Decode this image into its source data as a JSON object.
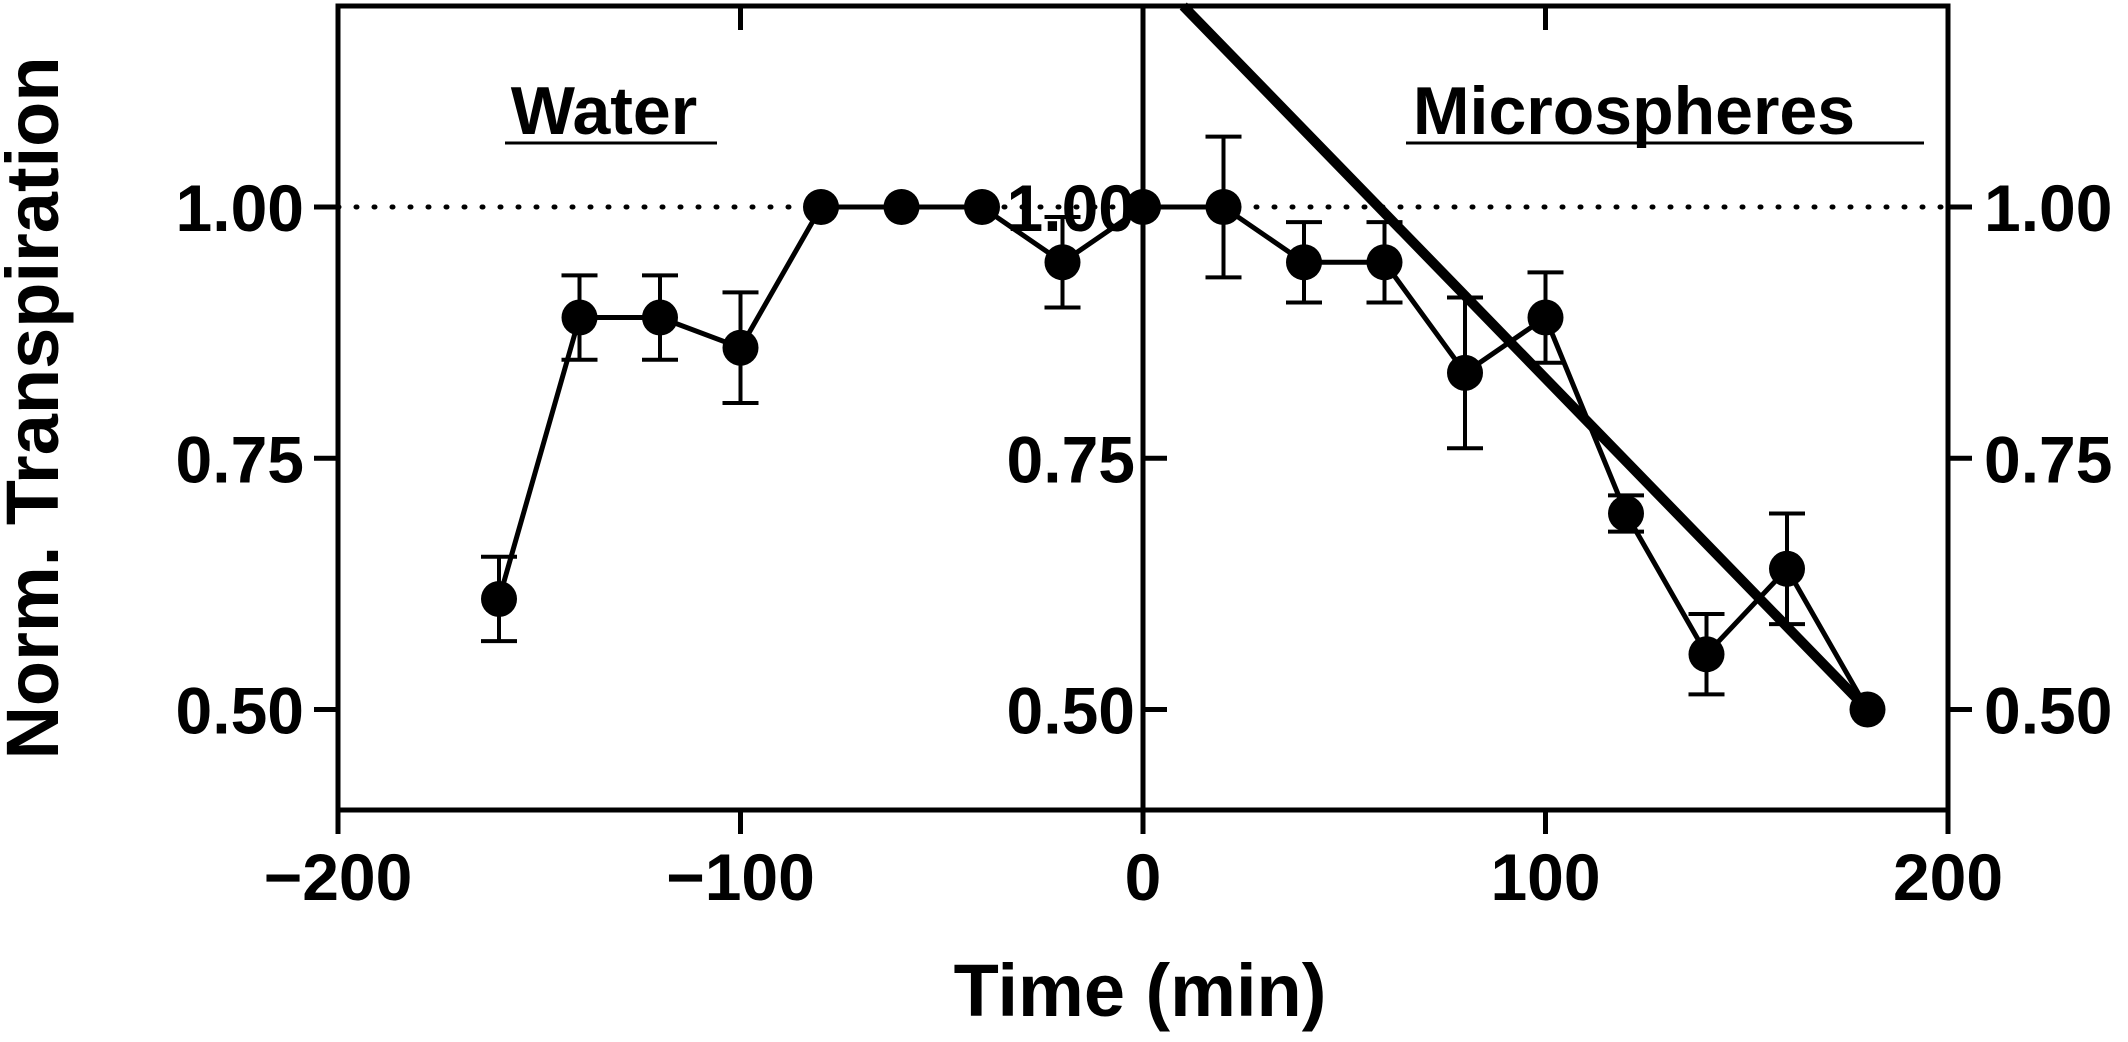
{
  "chart_data": {
    "type": "line",
    "xlabel": "Time (min)",
    "ylabel": "Norm. Transpiration",
    "xlim": [
      -200,
      200
    ],
    "ylim": [
      0.4,
      1.2
    ],
    "x_ticks": [
      -200,
      -100,
      0,
      100,
      200
    ],
    "x_tick_labels": [
      "−200",
      "−100",
      "0",
      "100",
      "200"
    ],
    "y_ticks": [
      0.5,
      0.75,
      1.0
    ],
    "y_tick_labels": [
      "0.50",
      "0.75",
      "1.00"
    ],
    "panel_labels": [
      "Water",
      "Microspheres"
    ],
    "reference_line": {
      "y": 1.0,
      "style": "dotted"
    },
    "series": [
      {
        "x": [
          -160,
          -140,
          -120,
          -100,
          -80,
          -60,
          -40,
          -20,
          0,
          20,
          40,
          60,
          80,
          100,
          120,
          140,
          160,
          180
        ],
        "y": [
          0.61,
          0.89,
          0.89,
          0.86,
          1.0,
          1.0,
          1.0,
          0.945,
          1.0,
          1.0,
          0.945,
          0.945,
          0.835,
          0.89,
          0.695,
          0.555,
          0.64,
          0.5
        ],
        "err": [
          0.042,
          0.042,
          0.042,
          0.055,
          0.0,
          0.0,
          0.0,
          0.045,
          0.0,
          0.07,
          0.04,
          0.04,
          0.075,
          0.045,
          0.018,
          0.04,
          0.055,
          0.0
        ]
      }
    ],
    "fit_line": {
      "x": [
        10,
        180
      ],
      "y": [
        1.2,
        0.5
      ]
    }
  }
}
